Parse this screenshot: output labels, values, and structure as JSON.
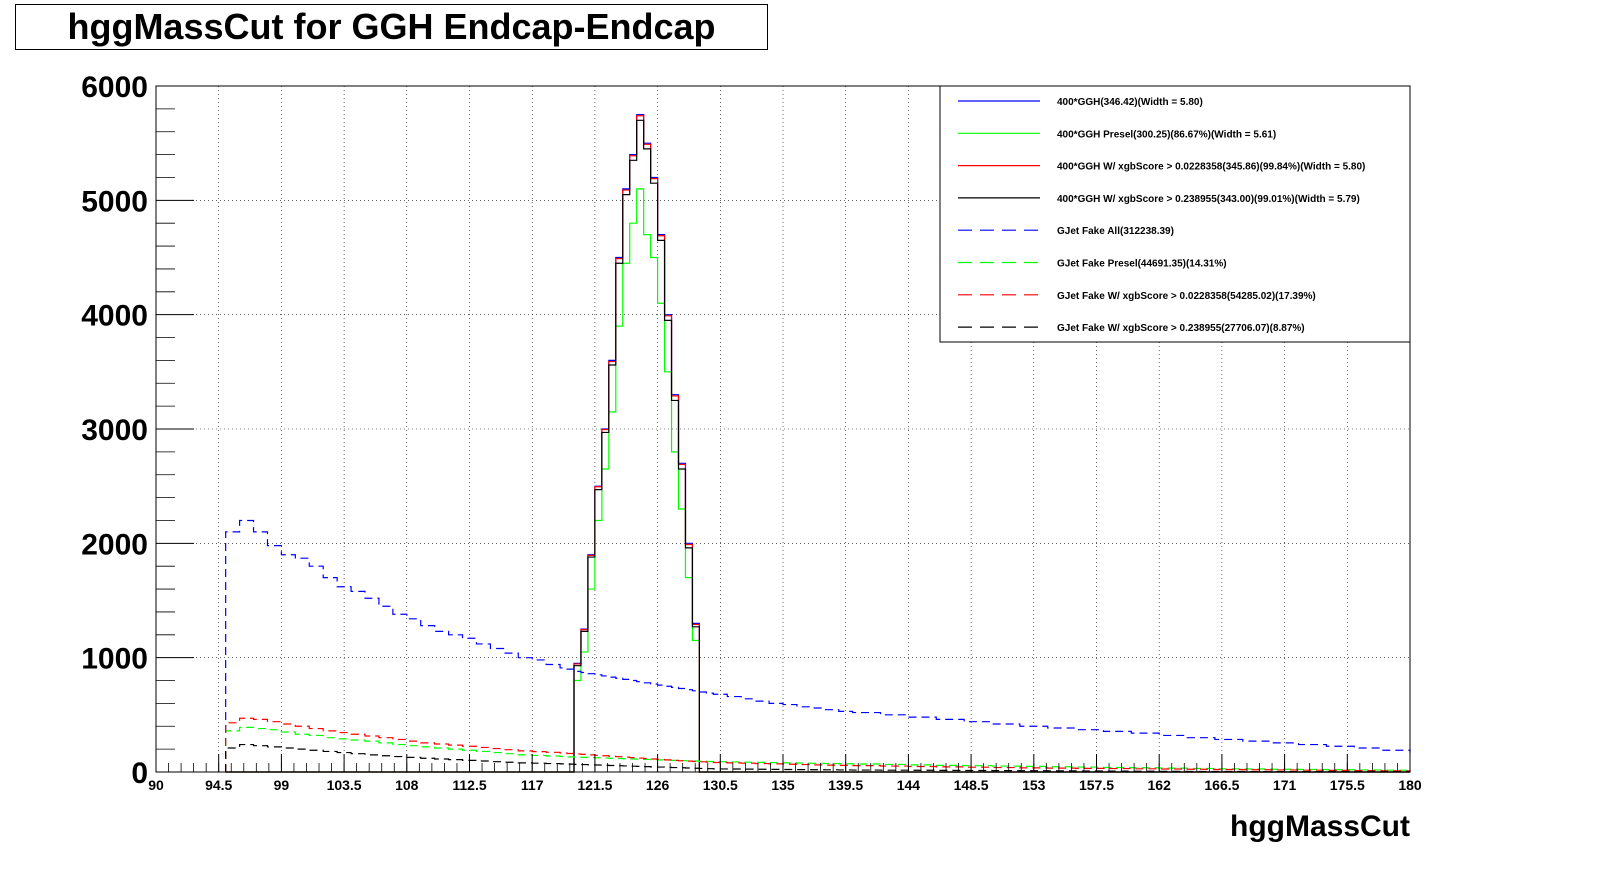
{
  "title": "hggMassCut for GGH Endcap-Endcap",
  "chart_data": {
    "type": "line",
    "title": "hggMassCut for GGH Endcap-Endcap",
    "xlabel": "hggMassCut",
    "ylabel": "",
    "xlim": [
      90,
      180
    ],
    "ylim": [
      0,
      6000
    ],
    "grid": true,
    "legend_position": "top-right",
    "x_tick_labels": [
      "90",
      "94.5",
      "99",
      "103.5",
      "108",
      "112.5",
      "117",
      "121.5",
      "126",
      "130.5",
      "135",
      "139.5",
      "144",
      "148.5",
      "153",
      "157.5",
      "162",
      "166.5",
      "171",
      "175.5",
      "180"
    ],
    "y_tick_labels": [
      "0",
      "1000",
      "2000",
      "3000",
      "4000",
      "5000",
      "6000"
    ],
    "x": [
      95,
      96,
      97,
      98,
      99,
      100,
      101,
      102,
      103,
      104,
      105,
      106,
      107,
      108,
      109,
      110,
      111,
      112,
      113,
      114,
      115,
      116,
      117,
      118,
      119,
      119.5,
      120,
      120.5,
      121,
      121.5,
      122,
      122.5,
      123,
      123.5,
      124,
      124.5,
      125,
      125.5,
      126,
      126.5,
      127,
      127.5,
      128,
      128.5,
      129,
      129.5,
      130,
      131,
      132,
      133,
      134,
      135,
      136,
      137,
      138,
      139,
      140,
      142,
      144,
      146,
      148,
      150,
      152,
      154,
      156,
      158,
      160,
      162,
      164,
      166,
      168,
      170,
      172,
      174,
      176,
      178,
      180
    ],
    "series": [
      {
        "name": "400*GGH(346.42)(Width = 5.80)",
        "color": "#0000ff",
        "dash": "solid",
        "values": [
          0,
          0,
          0,
          0,
          0,
          0,
          0,
          0,
          0,
          0,
          0,
          0,
          0,
          0,
          0,
          0,
          0,
          0,
          0,
          0,
          0,
          0,
          0,
          0,
          0,
          0,
          950,
          1250,
          1900,
          2500,
          3000,
          3600,
          4500,
          5100,
          5400,
          5750,
          5500,
          5200,
          4700,
          4000,
          3300,
          2700,
          2000,
          1300,
          0,
          0,
          0,
          0,
          0,
          0,
          0,
          0,
          0,
          0,
          0,
          0,
          0,
          0,
          0,
          0,
          0,
          0,
          0,
          0,
          0,
          0,
          0,
          0,
          0,
          0,
          0,
          0,
          0,
          0,
          0,
          0,
          0
        ]
      },
      {
        "name": "400*GGH Presel(300.25)(86.67%)(Width = 5.61)",
        "color": "#00ff00",
        "dash": "solid",
        "values": [
          0,
          0,
          0,
          0,
          0,
          0,
          0,
          0,
          0,
          0,
          0,
          0,
          0,
          0,
          0,
          0,
          0,
          0,
          0,
          0,
          0,
          0,
          0,
          0,
          0,
          0,
          800,
          1050,
          1600,
          2200,
          2650,
          3150,
          3900,
          4450,
          4800,
          5100,
          4700,
          4500,
          4100,
          3500,
          2800,
          2300,
          1700,
          1150,
          0,
          0,
          0,
          0,
          0,
          0,
          0,
          0,
          0,
          0,
          0,
          0,
          0,
          0,
          0,
          0,
          0,
          0,
          0,
          0,
          0,
          0,
          0,
          0,
          0,
          0,
          0,
          0,
          0,
          0,
          0,
          0,
          0
        ]
      },
      {
        "name": "400*GGH W/ xgbScore > 0.0228358(345.86)(99.84%)(Width = 5.80)",
        "color": "#ff0000",
        "dash": "solid",
        "values": [
          0,
          0,
          0,
          0,
          0,
          0,
          0,
          0,
          0,
          0,
          0,
          0,
          0,
          0,
          0,
          0,
          0,
          0,
          0,
          0,
          0,
          0,
          0,
          0,
          0,
          0,
          945,
          1245,
          1895,
          2495,
          2995,
          3590,
          4490,
          5090,
          5390,
          5740,
          5490,
          5190,
          4690,
          3990,
          3290,
          2690,
          1990,
          1290,
          0,
          0,
          0,
          0,
          0,
          0,
          0,
          0,
          0,
          0,
          0,
          0,
          0,
          0,
          0,
          0,
          0,
          0,
          0,
          0,
          0,
          0,
          0,
          0,
          0,
          0,
          0,
          0,
          0,
          0,
          0,
          0,
          0
        ]
      },
      {
        "name": "400*GGH W/ xgbScore > 0.238955(343.00)(99.01%)(Width = 5.79)",
        "color": "#000000",
        "dash": "solid",
        "values": [
          0,
          0,
          0,
          0,
          0,
          0,
          0,
          0,
          0,
          0,
          0,
          0,
          0,
          0,
          0,
          0,
          0,
          0,
          0,
          0,
          0,
          0,
          0,
          0,
          0,
          0,
          930,
          1230,
          1880,
          2470,
          2970,
          3560,
          4450,
          5050,
          5350,
          5700,
          5450,
          5150,
          4650,
          3950,
          3250,
          2650,
          1960,
          1270,
          0,
          0,
          0,
          0,
          0,
          0,
          0,
          0,
          0,
          0,
          0,
          0,
          0,
          0,
          0,
          0,
          0,
          0,
          0,
          0,
          0,
          0,
          0,
          0,
          0,
          0,
          0,
          0,
          0,
          0,
          0,
          0,
          0
        ]
      },
      {
        "name": "GJet Fake All(312238.39)",
        "color": "#0000ff",
        "dash": "dashed",
        "values": [
          2100,
          2200,
          2100,
          1980,
          1900,
          1870,
          1800,
          1700,
          1620,
          1580,
          1520,
          1450,
          1380,
          1340,
          1280,
          1230,
          1200,
          1170,
          1120,
          1080,
          1040,
          1000,
          980,
          940,
          910,
          900,
          880,
          870,
          860,
          850,
          840,
          830,
          820,
          810,
          800,
          790,
          780,
          770,
          760,
          750,
          740,
          730,
          720,
          710,
          700,
          690,
          680,
          660,
          640,
          620,
          600,
          590,
          570,
          560,
          545,
          530,
          520,
          500,
          480,
          460,
          440,
          420,
          400,
          385,
          370,
          355,
          340,
          320,
          300,
          285,
          270,
          255,
          240,
          225,
          210,
          190,
          170
        ]
      },
      {
        "name": "GJet Fake Presel(44691.35)(14.31%)",
        "color": "#00ff00",
        "dash": "dashed",
        "values": [
          360,
          390,
          380,
          370,
          350,
          330,
          320,
          300,
          290,
          280,
          270,
          255,
          240,
          230,
          220,
          210,
          200,
          190,
          180,
          170,
          160,
          150,
          145,
          140,
          135,
          132,
          130,
          128,
          126,
          124,
          122,
          120,
          118,
          116,
          114,
          112,
          110,
          108,
          106,
          104,
          102,
          100,
          98,
          96,
          94,
          92,
          90,
          88,
          86,
          84,
          82,
          80,
          78,
          76,
          74,
          72,
          70,
          66,
          62,
          58,
          55,
          52,
          49,
          46,
          43,
          40,
          37,
          34,
          31,
          28,
          26,
          24,
          22,
          20,
          18,
          16,
          14
        ]
      },
      {
        "name": "GJet Fake W/ xgbScore > 0.0228358(54285.02)(17.39%)",
        "color": "#ff0000",
        "dash": "dashed",
        "values": [
          430,
          470,
          460,
          440,
          420,
          400,
          380,
          360,
          345,
          330,
          315,
          300,
          285,
          270,
          255,
          245,
          235,
          225,
          215,
          205,
          195,
          185,
          178,
          172,
          166,
          162,
          158,
          154,
          150,
          146,
          142,
          138,
          134,
          130,
          126,
          122,
          118,
          114,
          110,
          106,
          102,
          98,
          95,
          92,
          89,
          86,
          83,
          80,
          77,
          74,
          71,
          68,
          65,
          62,
          60,
          58,
          56,
          52,
          48,
          45,
          42,
          39,
          36,
          34,
          32,
          30,
          28,
          26,
          24,
          22,
          20,
          18,
          16,
          14,
          12,
          10,
          8
        ]
      },
      {
        "name": "GJet Fake W/ xgbScore > 0.238955(27706.07)(8.87%)",
        "color": "#000000",
        "dash": "dashed",
        "values": [
          210,
          240,
          230,
          220,
          210,
          200,
          190,
          180,
          170,
          160,
          150,
          142,
          135,
          128,
          120,
          114,
          108,
          102,
          96,
          90,
          85,
          80,
          77,
          74,
          71,
          69,
          67,
          65,
          63,
          61,
          59,
          57,
          55,
          53,
          51,
          49,
          47,
          45,
          43,
          41,
          39,
          37,
          35,
          33,
          31,
          29,
          27,
          26,
          25,
          24,
          23,
          22,
          21,
          20,
          19,
          18,
          17,
          16,
          15,
          14,
          13,
          12,
          11,
          10,
          9,
          8,
          7,
          6,
          5,
          5,
          4,
          4,
          3,
          3,
          2,
          2,
          1
        ]
      }
    ]
  }
}
